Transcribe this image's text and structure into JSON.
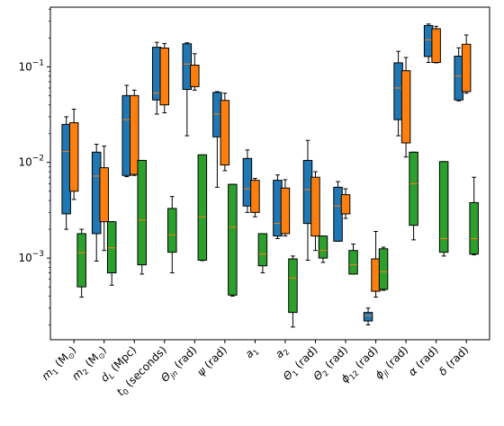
{
  "chart_data": {
    "type": "box",
    "title": "",
    "xlabel": "",
    "ylabel": "",
    "yscale": "log",
    "ylim": [
      0.00014,
      0.42
    ],
    "y_ticks": [
      {
        "value": 0.001,
        "base": "10",
        "exp": "−3"
      },
      {
        "value": 0.01,
        "base": "10",
        "exp": "−2"
      },
      {
        "value": 0.1,
        "base": "10",
        "exp": "−1"
      }
    ],
    "categories": [
      {
        "main": "m",
        "sub": "1",
        "rest": " (M",
        "sun": "⊙",
        "end": ")"
      },
      {
        "main": "m",
        "sub": "2",
        "rest": " (M",
        "sun": "⊙",
        "end": ")"
      },
      {
        "main": "d",
        "sub": "L",
        "rest": " (Mpc)",
        "sun": "",
        "end": ""
      },
      {
        "main": "t",
        "sub": "0",
        "rest": " (seconds)",
        "sun": "",
        "end": ""
      },
      {
        "main": "Θ",
        "sub": "jn",
        "rest": " (rad)",
        "sun": "",
        "end": ""
      },
      {
        "main": "ψ",
        "sub": "",
        "rest": " (rad)",
        "sun": "",
        "end": ""
      },
      {
        "main": "a",
        "sub": "1",
        "rest": "",
        "sun": "",
        "end": ""
      },
      {
        "main": "a",
        "sub": "2",
        "rest": "",
        "sun": "",
        "end": ""
      },
      {
        "main": "Θ",
        "sub": "1",
        "rest": " (rad)",
        "sun": "",
        "end": ""
      },
      {
        "main": "Θ",
        "sub": "2",
        "rest": " (rad)",
        "sun": "",
        "end": ""
      },
      {
        "main": "ϕ",
        "sub": "12",
        "rest": " (rad)",
        "sun": "",
        "end": ""
      },
      {
        "main": "ϕ",
        "sub": "jl",
        "rest": " (rad)",
        "sun": "",
        "end": ""
      },
      {
        "main": "α",
        "sub": "",
        "rest": " (rad)",
        "sun": "",
        "end": ""
      },
      {
        "main": "δ",
        "sub": "",
        "rest": " (rad)",
        "sun": "",
        "end": ""
      }
    ],
    "series": [
      {
        "color": "#1f77b4",
        "boxes": [
          {
            "whislo": 0.002,
            "q1": 0.0029,
            "med": 0.013,
            "q3": 0.025,
            "whishi": 0.03
          },
          {
            "whislo": 0.00093,
            "q1": 0.0018,
            "med": 0.0072,
            "q3": 0.0128,
            "whishi": 0.0155
          },
          {
            "whislo": 0.0071,
            "q1": 0.0073,
            "med": 0.028,
            "q3": 0.05,
            "whishi": 0.064
          },
          {
            "whislo": 0.032,
            "q1": 0.045,
            "med": 0.053,
            "q3": 0.16,
            "whishi": 0.18
          },
          {
            "whislo": 0.019,
            "q1": 0.058,
            "med": 0.107,
            "q3": 0.174,
            "whishi": 0.178
          },
          {
            "whislo": 0.0055,
            "q1": 0.0185,
            "med": 0.032,
            "q3": 0.054,
            "whishi": 0.055
          },
          {
            "whislo": 0.003,
            "q1": 0.0035,
            "med": 0.0053,
            "q3": 0.011,
            "whishi": 0.0135
          },
          {
            "whislo": 0.0016,
            "q1": 0.0017,
            "med": 0.0023,
            "q3": 0.0065,
            "whishi": 0.0074
          },
          {
            "whislo": 0.00095,
            "q1": 0.0023,
            "med": 0.0052,
            "q3": 0.0105,
            "whishi": 0.017
          },
          {
            "whislo": 0.0015,
            "q1": 0.0015,
            "med": 0.0035,
            "q3": 0.0055,
            "whishi": 0.0063
          },
          {
            "whislo": 0.0002,
            "q1": 0.00022,
            "med": 0.00025,
            "q3": 0.00027,
            "whishi": 0.0003
          },
          {
            "whislo": 0.019,
            "q1": 0.028,
            "med": 0.06,
            "q3": 0.11,
            "whishi": 0.145
          },
          {
            "whislo": 0.111,
            "q1": 0.128,
            "med": 0.192,
            "q3": 0.27,
            "whishi": 0.28
          },
          {
            "whislo": 0.044,
            "q1": 0.045,
            "med": 0.08,
            "q3": 0.129,
            "whishi": 0.158
          }
        ]
      },
      {
        "color": "#ff7f0e",
        "boxes": [
          {
            "whislo": 0.0041,
            "q1": 0.005,
            "med": 0.0087,
            "q3": 0.026,
            "whishi": 0.036
          },
          {
            "whislo": 0.0012,
            "q1": 0.0024,
            "med": 0.0041,
            "q3": 0.0088,
            "whishi": 0.0148
          },
          {
            "whislo": 0.0073,
            "q1": 0.0075,
            "med": 0.027,
            "q3": 0.05,
            "whishi": 0.057
          },
          {
            "whislo": 0.033,
            "q1": 0.04,
            "med": 0.1,
            "q3": 0.157,
            "whishi": 0.175
          },
          {
            "whislo": 0.057,
            "q1": 0.062,
            "med": 0.085,
            "q3": 0.104,
            "whishi": 0.137
          },
          {
            "whislo": 0.0082,
            "q1": 0.0094,
            "med": 0.02,
            "q3": 0.0445,
            "whishi": 0.053
          },
          {
            "whislo": 0.0027,
            "q1": 0.003,
            "med": 0.0043,
            "q3": 0.0065,
            "whishi": 0.0068
          },
          {
            "whislo": 0.0017,
            "q1": 0.0018,
            "med": 0.0035,
            "q3": 0.0054,
            "whishi": 0.0066
          },
          {
            "whislo": 0.0012,
            "q1": 0.0017,
            "med": 0.0033,
            "q3": 0.007,
            "whishi": 0.008
          },
          {
            "whislo": 0.0026,
            "q1": 0.0029,
            "med": 0.0033,
            "q3": 0.0046,
            "whishi": 0.0053
          },
          {
            "whislo": 0.00039,
            "q1": 0.00045,
            "med": 0.00068,
            "q3": 0.00098,
            "whishi": 0.0019
          },
          {
            "whislo": 0.0114,
            "q1": 0.016,
            "med": 0.037,
            "q3": 0.091,
            "whishi": 0.125
          },
          {
            "whislo": 0.11,
            "q1": 0.111,
            "med": 0.204,
            "q3": 0.25,
            "whishi": 0.265
          },
          {
            "whislo": 0.053,
            "q1": 0.055,
            "med": 0.095,
            "q3": 0.172,
            "whishi": 0.215
          }
        ]
      },
      {
        "color": "#2ca02c",
        "boxes": [
          {
            "whislo": 0.00039,
            "q1": 0.0005,
            "med": 0.00114,
            "q3": 0.0018,
            "whishi": 0.002
          },
          {
            "whislo": 0.00052,
            "q1": 0.0007,
            "med": 0.00128,
            "q3": 0.0024,
            "whishi": 0.0024
          },
          {
            "whislo": 0.00068,
            "q1": 0.00085,
            "med": 0.0025,
            "q3": 0.0105,
            "whishi": 0.0105
          },
          {
            "whislo": 0.0007,
            "q1": 0.00115,
            "med": 0.00175,
            "q3": 0.0033,
            "whishi": 0.0044
          },
          {
            "whislo": 0.00094,
            "q1": 0.00095,
            "med": 0.0027,
            "q3": 0.012,
            "whishi": 0.012
          },
          {
            "whislo": 0.0004,
            "q1": 0.00041,
            "med": 0.0021,
            "q3": 0.0059,
            "whishi": 0.0059
          },
          {
            "whislo": 0.0007,
            "q1": 0.00083,
            "med": 0.0011,
            "q3": 0.0018,
            "whishi": 0.0018
          },
          {
            "whislo": 0.00019,
            "q1": 0.00027,
            "med": 0.00062,
            "q3": 0.00098,
            "whishi": 0.00105
          },
          {
            "whislo": 0.0009,
            "q1": 0.001,
            "med": 0.0012,
            "q3": 0.0017,
            "whishi": 0.0017
          },
          {
            "whislo": 0.00068,
            "q1": 0.00068,
            "med": 0.00085,
            "q3": 0.0012,
            "whishi": 0.0014
          },
          {
            "whislo": 0.00046,
            "q1": 0.00047,
            "med": 0.00072,
            "q3": 0.00125,
            "whishi": 0.0013
          },
          {
            "whislo": 0.00155,
            "q1": 0.0022,
            "med": 0.006,
            "q3": 0.0128,
            "whishi": 0.0128
          },
          {
            "whislo": 0.00105,
            "q1": 0.00115,
            "med": 0.0016,
            "q3": 0.0102,
            "whishi": 0.0102
          },
          {
            "whislo": 0.00108,
            "q1": 0.0011,
            "med": 0.0016,
            "q3": 0.0038,
            "whishi": 0.007
          }
        ]
      }
    ]
  }
}
